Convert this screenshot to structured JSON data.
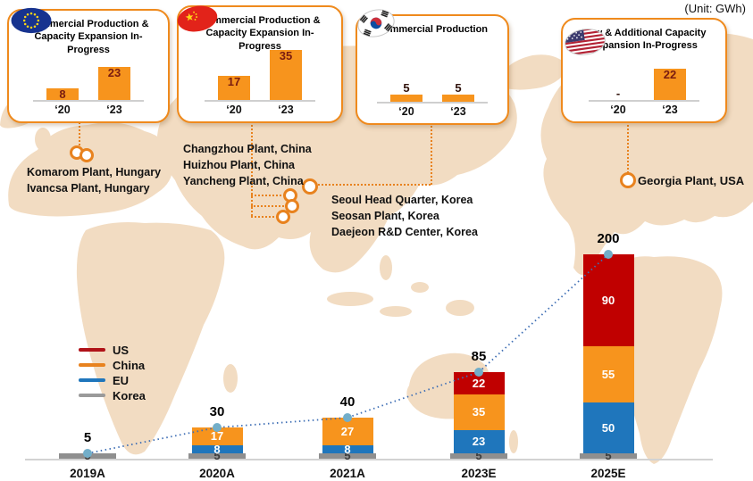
{
  "unit_label": "(Unit: GWh)",
  "palette": {
    "callout_border": "#ef8a1d",
    "mini_bar_orange": "#f7941d",
    "us_red": "#c00000",
    "china_orange": "#f7941d",
    "eu_blue": "#1f76bc",
    "korea_gray": "#8f8f8f",
    "map_land": "#f2dcc2",
    "trend_line_blue": "#3f6fb5",
    "trend_dot_blue": "#72aec9",
    "connector_orange": "#e8821e"
  },
  "callouts": [
    {
      "region": "EU",
      "flag": "eu-flag"
    },
    {
      "region": "China",
      "flag": "china-flag"
    },
    {
      "region": "Korea",
      "flag": "korea-flag"
    },
    {
      "region": "US",
      "flag": "usa-flag"
    }
  ],
  "plant_labels": {
    "hungary": [
      "Komarom Plant, Hungary",
      "Ivancsa Plant, Hungary"
    ],
    "china": [
      "Changzhou Plant, China",
      "Huizhou Plant, China",
      "Yancheng Plant, China"
    ],
    "korea": [
      "Seoul Head Quarter, Korea",
      "Seosan Plant, Korea",
      "Daejeon R&D Center, Korea"
    ],
    "usa": [
      "Georgia Plant, USA"
    ]
  },
  "legend": {
    "items": [
      {
        "label": "US",
        "color": "#b01218"
      },
      {
        "label": "China",
        "color": "#e8821e"
      },
      {
        "label": "EU",
        "color": "#1f76bc"
      },
      {
        "label": "Korea",
        "color": "#9a9a9a"
      }
    ]
  },
  "chart_data": [
    {
      "type": "bar",
      "stacked": true,
      "unit": "GWh",
      "categories": [
        "2019A",
        "2020A",
        "2021A",
        "2023E",
        "2025E"
      ],
      "series": [
        {
          "name": "US",
          "color": "#c00000",
          "values": [
            0,
            0,
            0,
            22,
            90
          ]
        },
        {
          "name": "China",
          "color": "#f7941d",
          "values": [
            0,
            17,
            27,
            35,
            55
          ]
        },
        {
          "name": "EU",
          "color": "#1f76bc",
          "values": [
            0,
            8,
            8,
            23,
            50
          ]
        },
        {
          "name": "Korea",
          "color": "#8f8f8f",
          "values": [
            5,
            5,
            5,
            5,
            5
          ]
        }
      ],
      "totals": [
        5,
        30,
        40,
        85,
        200
      ],
      "trend_line": true,
      "legend_position": "left",
      "ylim": [
        0,
        200
      ],
      "grid": false
    },
    {
      "type": "bar",
      "region": "EU",
      "title": "Commercial Production & Capacity Expansion In-Progress",
      "categories": [
        "‘20",
        "‘23"
      ],
      "values": [
        8,
        23
      ]
    },
    {
      "type": "bar",
      "region": "China",
      "title": "Commercial Production & Capacity Expansion In-Progress",
      "categories": [
        "‘20",
        "‘23"
      ],
      "values": [
        17,
        35
      ]
    },
    {
      "type": "bar",
      "region": "Korea",
      "title": "Commercial Production",
      "categories": [
        "‘20",
        "‘23"
      ],
      "values": [
        5,
        5
      ]
    },
    {
      "type": "bar",
      "region": "US",
      "title": "New & Additional Capacity Expansion In-Progress",
      "categories": [
        "‘20",
        "‘23"
      ],
      "values": [
        "-",
        22
      ]
    }
  ]
}
